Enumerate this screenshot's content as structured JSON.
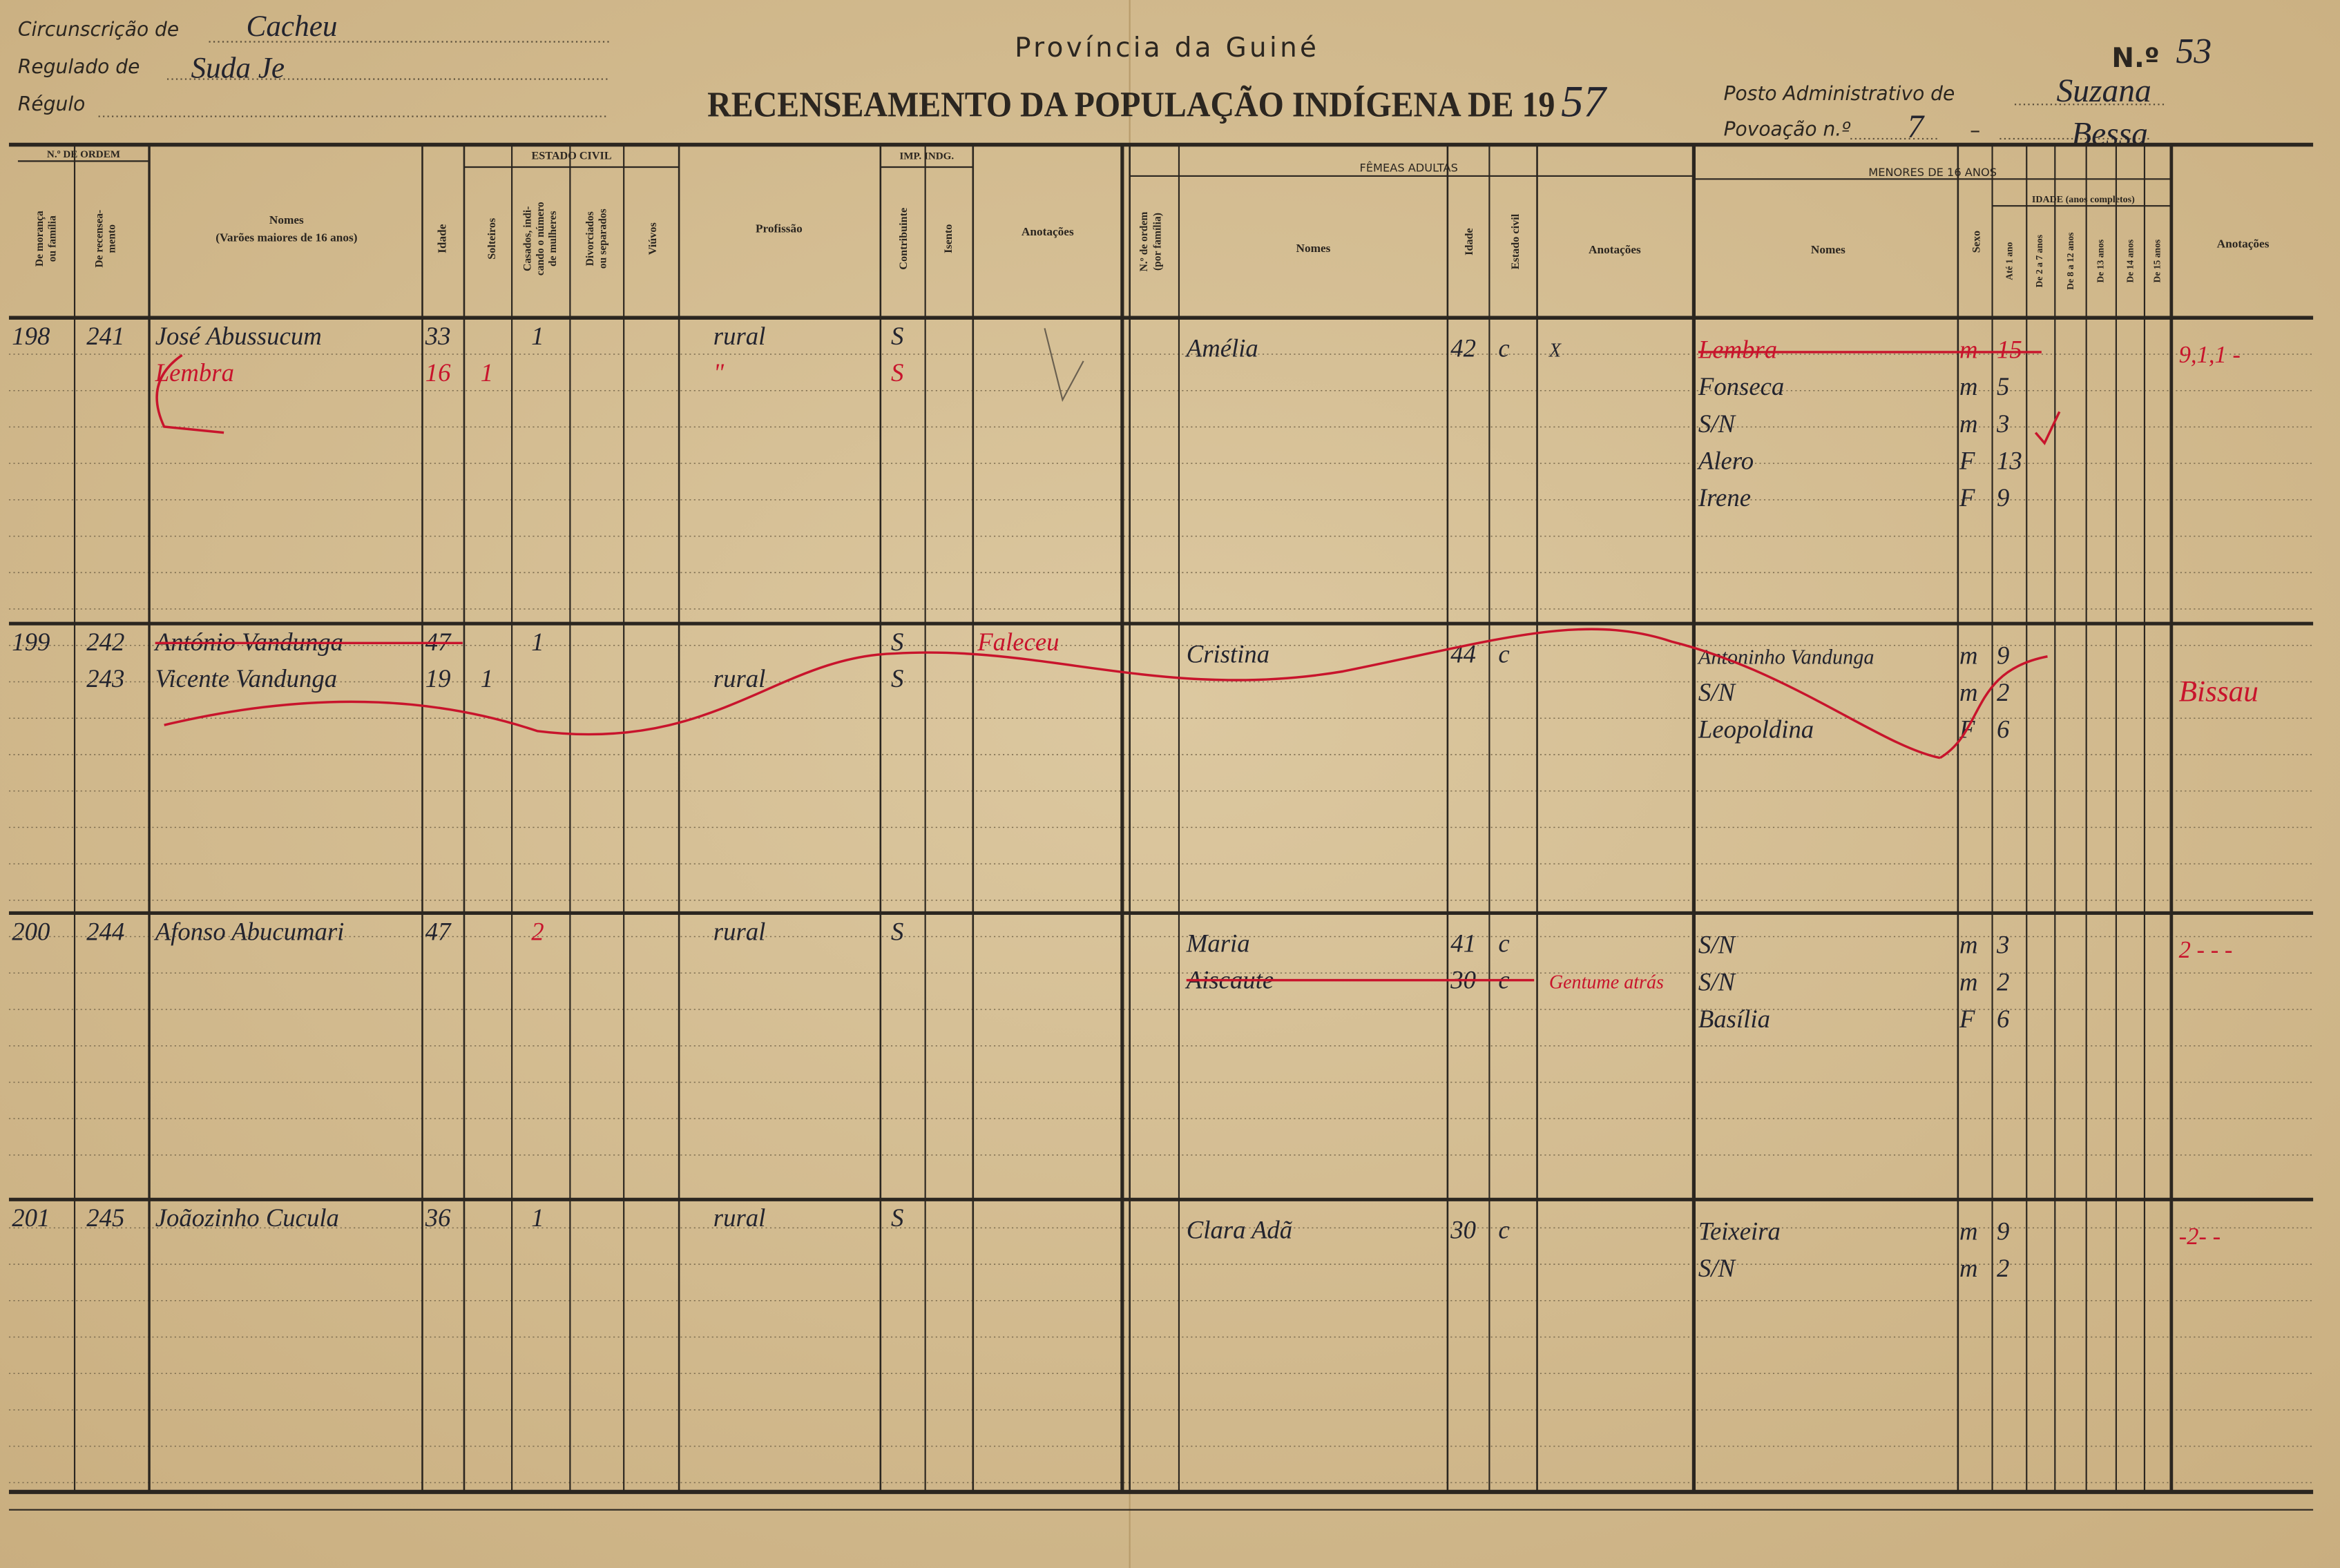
{
  "header": {
    "circunscricao_label": "Circunscrição de",
    "circunscricao": "Cacheu",
    "regulado_label": "Regulado de",
    "regulado": "Suda Je",
    "regulo_label": "Régulo",
    "province": "Província da Guiné",
    "title": "RECENSEAMENTO DA POPULAÇÃO INDÍGENA DE 19",
    "year": "57",
    "number_label": "N.º",
    "number": "53",
    "posto_label": "Posto Administrativo de",
    "posto": "Suzana",
    "povoacao_label": "Povoação n.º",
    "povoacao": "7",
    "povoacao_dash": "–",
    "povoacao_name": "Bessa"
  },
  "columns": {
    "ordem_group": "N.º DE ORDEM",
    "moranca": [
      "De morança",
      "ou família"
    ],
    "recenseamento": [
      "De recensea-",
      "mento"
    ],
    "nomes": "Nomes",
    "nomes_sub": "(Varões maiores de 16 anos)",
    "idade": "Idade",
    "estado_group": "ESTADO CIVIL",
    "solteiros": "Solteiros",
    "casados": [
      "Casados, indi-",
      "cando o número",
      "de mulheres"
    ],
    "divorciados": [
      "Divorciados",
      "ou separados"
    ],
    "viuvos": "Viúvos",
    "profissao": "Profissão",
    "imp_group": "IMP. INDG.",
    "contribuinte": "Contribuinte",
    "isento": "Isento",
    "anotacoes": "Anotações",
    "ordem_familia": [
      "N.º de ordem",
      "(por família)"
    ],
    "femeas_group": "FÊMEAS ADULTAS",
    "f_nomes": "Nomes",
    "f_idade": "Idade",
    "f_estado": "Estado civil",
    "f_anotacoes": "Anotações",
    "menores_group": "MENORES DE 16 ANOS",
    "m_nomes": "Nomes",
    "sexo": "Sexo",
    "idade_group": "IDADE (anos completos)",
    "ages": [
      "Até 1 ano",
      "De 2 a 7 anos",
      "De 8 a 12 anos",
      "De 13 anos",
      "De 14 anos",
      "De 15 anos"
    ],
    "m_anotacoes": "Anotações"
  },
  "families": [
    {
      "moranca": "198",
      "men": [
        {
          "recenseamento": "241",
          "name": "José Abussucum",
          "age": "33",
          "casados": "1",
          "profession": "rural",
          "contribuinte": "S"
        },
        {
          "name": "Lembra",
          "age": "16",
          "solteiros": "1",
          "profession": "\"",
          "contribuinte": "S"
        }
      ],
      "women": [
        {
          "name": "Amélia",
          "age": "42",
          "estado": "c",
          "note": "X"
        }
      ],
      "minors": [
        {
          "name": "Lembra",
          "sexo": "m",
          "age": "15"
        },
        {
          "name": "Fonseca",
          "sexo": "m",
          "age": "5"
        },
        {
          "name": "S/N",
          "sexo": "m",
          "age": "3"
        },
        {
          "name": "Alero",
          "sexo": "F",
          "age": "13"
        },
        {
          "name": "Irene",
          "sexo": "F",
          "age": "9"
        }
      ],
      "note": "9,1,1 -"
    },
    {
      "moranca": "199",
      "men": [
        {
          "recenseamento": "242",
          "name": "António Vandunga",
          "age": "47",
          "casados": "1",
          "contribuinte": "S",
          "note": "Faleceu"
        },
        {
          "recenseamento": "243",
          "name": "Vicente Vandunga",
          "age": "19",
          "solteiros": "1",
          "profession": "rural",
          "contribuinte": "S"
        }
      ],
      "women": [
        {
          "name": "Cristina",
          "age": "44",
          "estado": "c"
        }
      ],
      "minors": [
        {
          "name": "Antoninho Vandunga",
          "sexo": "m",
          "age": "9"
        },
        {
          "name": "S/N",
          "sexo": "m",
          "age": "2"
        },
        {
          "name": "Leopoldina",
          "sexo": "F",
          "age": "6"
        }
      ],
      "note": "Bissau"
    },
    {
      "moranca": "200",
      "men": [
        {
          "recenseamento": "244",
          "name": "Afonso Abucumari",
          "age": "47",
          "casados": "2",
          "profession": "rural",
          "contribuinte": "S"
        }
      ],
      "women": [
        {
          "name": "Maria",
          "age": "41",
          "estado": "c"
        },
        {
          "name": "Aiscaute",
          "age": "30",
          "estado": "c",
          "note": "Gentume atrás"
        }
      ],
      "minors": [
        {
          "name": "S/N",
          "sexo": "m",
          "age": "3"
        },
        {
          "name": "S/N",
          "sexo": "m",
          "age": "2"
        },
        {
          "name": "Basília",
          "sexo": "F",
          "age": "6"
        }
      ],
      "note": "2 - - -"
    },
    {
      "moranca": "201",
      "men": [
        {
          "recenseamento": "245",
          "name": "Joãozinho Cucula",
          "age": "36",
          "casados": "1",
          "profession": "rural",
          "contribuinte": "S"
        }
      ],
      "women": [
        {
          "name": "Clara Adã",
          "age": "30",
          "estado": "c"
        }
      ],
      "minors": [
        {
          "name": "Teixeira",
          "sexo": "m",
          "age": "9"
        },
        {
          "name": "S/N",
          "sexo": "m",
          "age": "2"
        }
      ],
      "note": "-2- -"
    }
  ]
}
